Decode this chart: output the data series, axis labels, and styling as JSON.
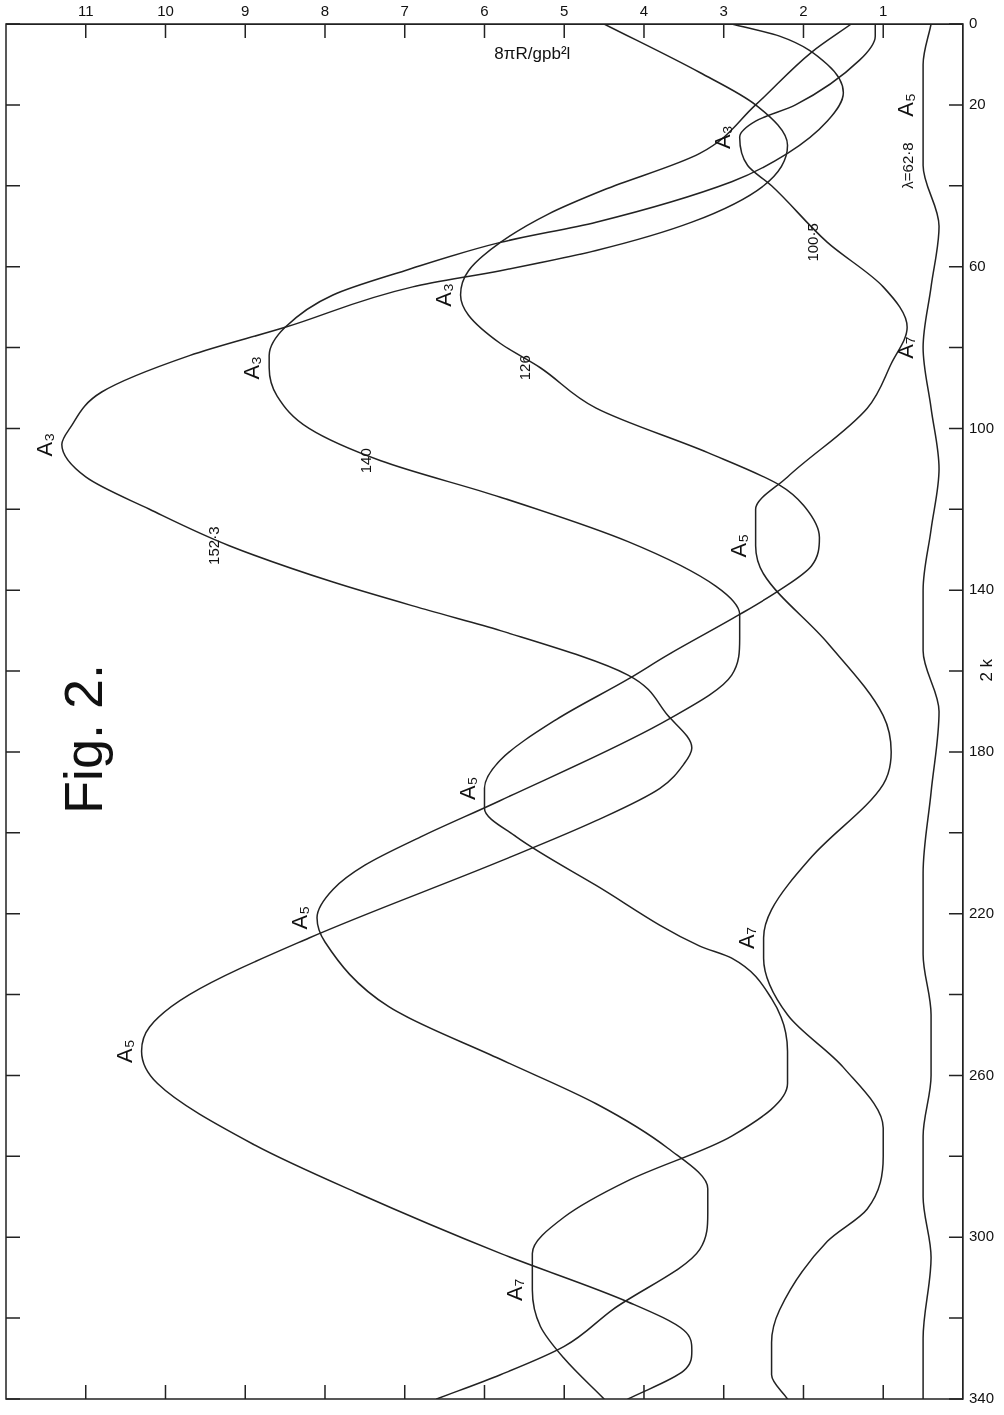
{
  "chart_data": {
    "type": "line",
    "title": "Fig. 2.",
    "xlabel": "8πR/gpb²l",
    "ylabel": "2 k",
    "xlim": [
      12,
      0
    ],
    "ylim": [
      340,
      0
    ],
    "xticks": [
      11,
      10,
      9,
      8,
      7,
      6,
      5,
      4,
      3,
      2,
      1
    ],
    "yticks": [
      0,
      20,
      {
        "value": 40,
        "label": null
      },
      60,
      {
        "value": 80,
        "label": null
      },
      100,
      {
        "value": 120,
        "label": null
      },
      140,
      {
        "value": 160,
        "label": null
      },
      180,
      {
        "value": 200,
        "label": null
      },
      220,
      {
        "value": 240,
        "label": null
      },
      260,
      {
        "value": 280,
        "label": null
      },
      300,
      {
        "value": 320,
        "label": null
      },
      340
    ],
    "marker": "none",
    "series": [
      {
        "color": "#222222",
        "x": [
          4.5,
          3.3,
          2.6,
          2.2,
          2.5,
          3.4,
          4.6,
          5.8,
          6.9,
          8.5,
          9.7,
          10.8,
          11.2,
          11.3,
          11.0,
          10.2,
          9.2,
          7.9,
          6.7,
          5.8,
          4.2,
          3.7,
          3.4,
          3.5,
          3.8,
          4.6,
          5.8,
          8.2,
          9.7,
          10.2,
          10.3,
          10.1,
          8.9,
          7.6,
          5.8,
          4.2,
          3.5,
          3.4,
          3.5,
          4.2
        ],
        "values": [
          0,
          12,
          20,
          30,
          40,
          49,
          56,
          61,
          65,
          75,
          82,
          91,
          100,
          104,
          112,
          120,
          129,
          138,
          145,
          150,
          161,
          171,
          179,
          183,
          189,
          197,
          207,
          226,
          240,
          248,
          254,
          262,
          277,
          289,
          304,
          316,
          323,
          328,
          333,
          340
        ]
      },
      {
        "color": "#222222",
        "x": [
          2.9,
          2.3,
          1.7,
          1.5,
          1.7,
          2.2,
          2.9,
          4.6,
          5.8,
          7.0,
          7.9,
          8.5,
          8.7,
          8.7,
          8.6,
          8.2,
          7.3,
          5.8,
          4.2,
          3.1,
          2.8,
          2.8,
          2.9,
          3.7,
          5.8,
          6.8,
          7.5,
          7.9,
          8.1,
          8.0,
          7.2,
          5.8,
          4.6,
          3.7,
          3.2,
          3.2,
          3.3,
          4.4,
          5.0,
          5.8,
          6.6
        ],
        "values": [
          0,
          3,
          10,
          17,
          24,
          32,
          39,
          49,
          54,
          61,
          67,
          75,
          82,
          85,
          92,
          100,
          108,
          117,
          128,
          139,
          146,
          152,
          161,
          172,
          192,
          201,
          208,
          214,
          221,
          227,
          243,
          256,
          267,
          278,
          288,
          294,
          303,
          318,
          327,
          334,
          340
        ]
      },
      {
        "color": "#222222",
        "x": [
          1.4,
          1.9,
          2.6,
          3.3,
          4.5,
          5.2,
          5.8,
          6.2,
          6.3,
          6.2,
          5.8,
          5.3,
          4.6,
          3.2,
          2.3,
          2.0,
          1.8,
          1.9,
          2.3,
          2.8,
          3.7,
          4.2,
          5.1,
          5.8,
          6.0,
          6.0,
          5.6,
          4.6,
          3.3,
          2.9,
          2.4,
          2.2,
          2.2,
          2.9,
          4.2,
          5.0,
          5.4,
          5.4,
          5.3,
          5.0,
          4.5
        ],
        "values": [
          0,
          7,
          20,
          32,
          41,
          47,
          54,
          61,
          67,
          72,
          79,
          85,
          95,
          106,
          114,
          119,
          127,
          134,
          140,
          146,
          156,
          162,
          172,
          182,
          189,
          194,
          201,
          213,
          228,
          231,
          241,
          254,
          262,
          275,
          286,
          295,
          304,
          313,
          322,
          330,
          340
        ]
      },
      {
        "color": "#222222",
        "x": [
          1.1,
          1.1,
          1.3,
          2.1,
          2.6,
          2.8,
          2.7,
          2.4,
          1.7,
          1.0,
          0.7,
          0.9,
          1.2,
          2.2,
          2.6,
          2.6,
          2.5,
          1.7,
          1.0,
          0.9,
          1.0,
          1.9,
          2.4,
          2.5,
          2.5,
          2.2,
          1.5,
          1.0,
          1.0,
          1.2,
          1.7,
          2.3,
          2.4,
          2.4,
          2.2
        ],
        "values": [
          0,
          3,
          9,
          20,
          24,
          28,
          35,
          40,
          54,
          65,
          75,
          84,
          95,
          112,
          120,
          129,
          136,
          153,
          171,
          180,
          188,
          206,
          219,
          226,
          231,
          245,
          258,
          273,
          280,
          293,
          301,
          318,
          326,
          334,
          340
        ]
      },
      {
        "color": "#222222",
        "x": [
          0.4,
          0.5,
          0.5,
          0.5,
          0.3,
          0.4,
          0.5,
          0.4,
          0.3,
          0.4,
          0.5,
          0.5,
          0.3,
          0.4,
          0.5,
          0.5,
          0.4,
          0.4,
          0.5,
          0.5,
          0.4,
          0.5,
          0.5
        ],
        "values": [
          0,
          10,
          20,
          35,
          50,
          65,
          80,
          95,
          110,
          125,
          140,
          155,
          170,
          190,
          210,
          230,
          245,
          260,
          275,
          290,
          305,
          325,
          340
        ]
      }
    ],
    "annotations": [
      {
        "text": "A₃",
        "x": 11.3,
        "y": 104
      },
      {
        "text": "A₃",
        "x": 8.7,
        "y": 85
      },
      {
        "text": "A₃",
        "x": 6.3,
        "y": 67
      },
      {
        "text": "A₃",
        "x": 2.8,
        "y": 28
      },
      {
        "text": "A₅",
        "x": 0.5,
        "y": 20
      },
      {
        "text": "A₇",
        "x": 0.5,
        "y": 80
      },
      {
        "text": "A₅",
        "x": 2.6,
        "y": 129
      },
      {
        "text": "A₅",
        "x": 6.0,
        "y": 189
      },
      {
        "text": "A₅",
        "x": 8.1,
        "y": 221
      },
      {
        "text": "A₇",
        "x": 2.5,
        "y": 226
      },
      {
        "text": "A₅",
        "x": 10.3,
        "y": 254
      },
      {
        "text": "A₇",
        "x": 5.4,
        "y": 313
      },
      {
        "text": "152·3",
        "x": 9.2,
        "y": 129
      },
      {
        "text": "140",
        "x": 7.3,
        "y": 108
      },
      {
        "text": "126",
        "x": 5.3,
        "y": 85
      },
      {
        "text": "100·5",
        "x": 1.7,
        "y": 54
      },
      {
        "text": "λ=62·8",
        "x": 0.5,
        "y": 35
      }
    ]
  }
}
